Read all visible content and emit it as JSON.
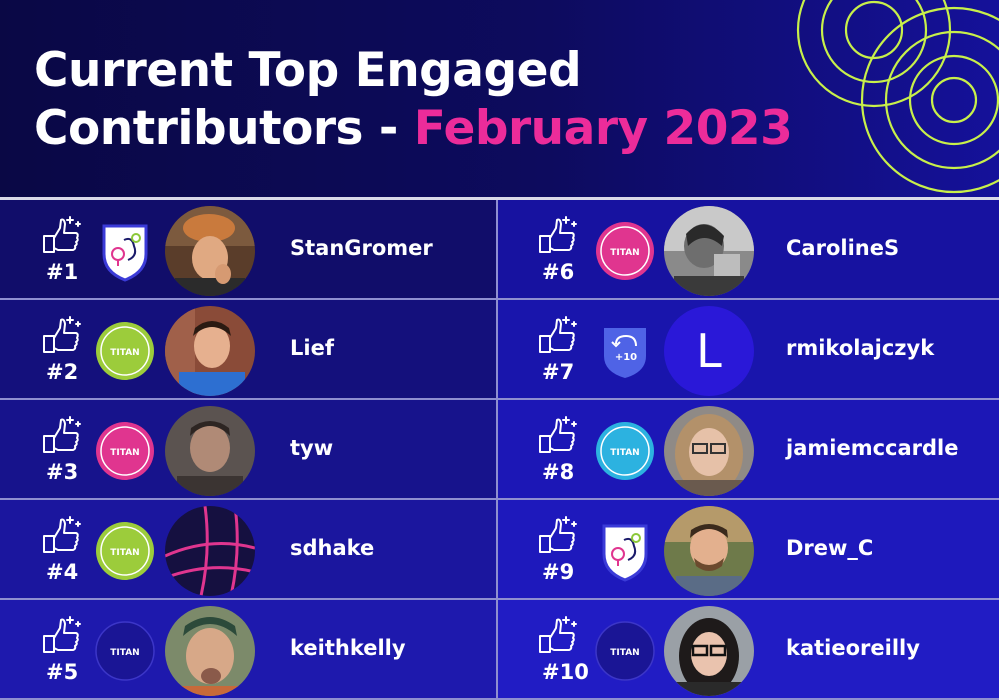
{
  "header": {
    "title_line1": "Current Top Engaged",
    "title_line2_prefix": "Contributors - ",
    "title_line2_accent": "February 2023",
    "accent_color": "#ec2c9a"
  },
  "contributors": [
    {
      "rank": "#1",
      "name": "StanGromer",
      "badge": "titan-shield-badge",
      "badge_text": ""
    },
    {
      "rank": "#2",
      "name": "Lief",
      "badge": "green-titan-badge",
      "badge_text": "TITAN"
    },
    {
      "rank": "#3",
      "name": "tyw",
      "badge": "pink-titan-badge",
      "badge_text": "TITAN"
    },
    {
      "rank": "#4",
      "name": "sdhake",
      "badge": "green-titan-badge",
      "badge_text": "TITAN"
    },
    {
      "rank": "#5",
      "name": "keithkelly",
      "badge": "navy-titan-badge",
      "badge_text": "TITAN"
    },
    {
      "rank": "#6",
      "name": "CarolineS",
      "badge": "pink-titan-badge",
      "badge_text": "TITAN"
    },
    {
      "rank": "#7",
      "name": "rmikolajczyk",
      "badge": "plus-ten-badge",
      "badge_text": "+10",
      "avatar_letter": "L"
    },
    {
      "rank": "#8",
      "name": "jamiemccardle",
      "badge": "cyan-titan-badge",
      "badge_text": "TITAN"
    },
    {
      "rank": "#9",
      "name": "Drew_C",
      "badge": "titan-shield-badge",
      "badge_text": ""
    },
    {
      "rank": "#10",
      "name": "katieoreilly",
      "badge": "navy-titan-badge",
      "badge_text": "TITAN"
    }
  ]
}
